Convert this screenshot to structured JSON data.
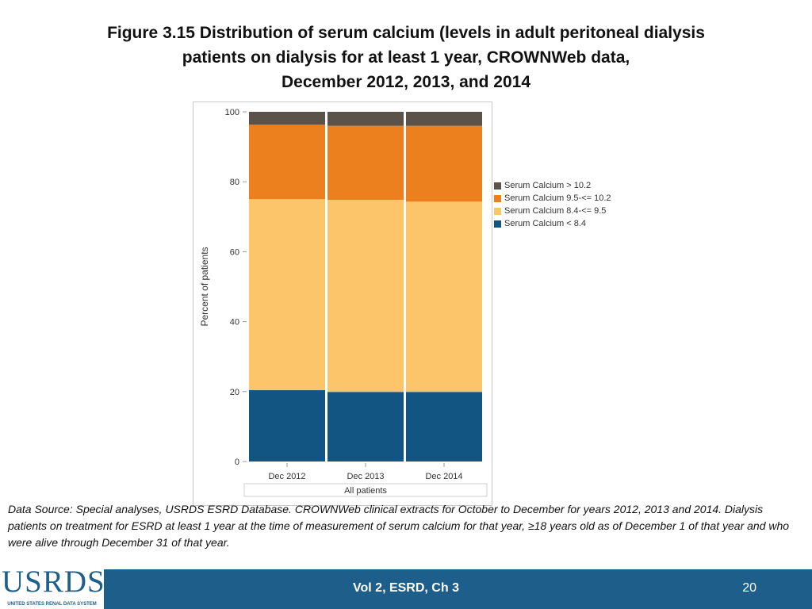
{
  "slide": {
    "title_lines": [
      "Figure 3.15 Distribution of serum calcium (levels in adult peritoneal dialysis",
      "patients on dialysis for at least 1 year, CROWNWeb data,",
      "December 2012, 2013, and 2014"
    ],
    "footnote": "Data Source: Special analyses, USRDS ESRD Database. CROWNWeb clinical extracts for October to December for years 2012, 2013 and 2014. Dialysis patients on treatment for ESRD at least 1 year at the time of measurement of serum calcium for that year, ≥18 years old as of December 1 of that year and who were alive through December 31 of that year.",
    "footer_label": "Vol 2, ESRD, Ch 3",
    "page_number": "20",
    "logo_text": "USRDS",
    "logo_subtext": "UNITED STATES RENAL DATA SYSTEM"
  },
  "chart_data": {
    "type": "bar",
    "stacked": true,
    "categories": [
      "Dec 2012",
      "Dec 2013",
      "Dec 2014"
    ],
    "group_label": "All patients",
    "ylabel": "Percent of patients",
    "ylim": [
      0,
      100
    ],
    "yticks": [
      0,
      20,
      40,
      60,
      80,
      100
    ],
    "legend_position": "right",
    "series": [
      {
        "name": "Serum Calcium < 8.4",
        "color": "#125482",
        "values": [
          20.4,
          19.9,
          19.9
        ]
      },
      {
        "name": "Serum Calcium 8.4-<= 9.5",
        "color": "#fcc56a",
        "values": [
          54.6,
          54.9,
          54.4
        ]
      },
      {
        "name": "Serum Calcium 9.5-<= 10.2",
        "color": "#ec801f",
        "values": [
          21.3,
          21.2,
          21.7
        ]
      },
      {
        "name": "Serum Calcium > 10.2",
        "color": "#5b524a",
        "values": [
          3.7,
          4.0,
          4.0
        ]
      }
    ],
    "legend_order": [
      3,
      2,
      1,
      0
    ]
  }
}
